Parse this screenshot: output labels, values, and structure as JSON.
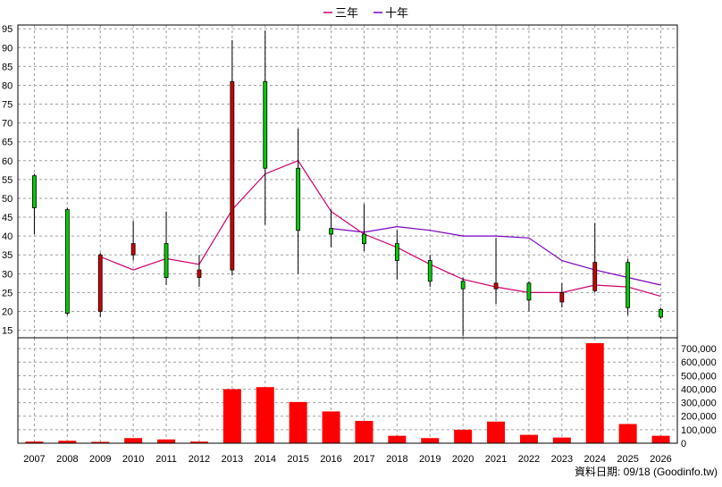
{
  "chart_data": {
    "type": "candlestick-volume",
    "legend": [
      {
        "name": "三年",
        "color": "#d0006f"
      },
      {
        "name": "十年",
        "color": "#7a00c0"
      }
    ],
    "years": [
      "2007",
      "2008",
      "2009",
      "2010",
      "2011",
      "2012",
      "2013",
      "2014",
      "2015",
      "2016",
      "2017",
      "2018",
      "2019",
      "2020",
      "2021",
      "2022",
      "2023",
      "2024",
      "2025",
      "2026"
    ],
    "price": {
      "ylim": [
        13,
        96
      ],
      "ticks": [
        15,
        20,
        25,
        30,
        35,
        40,
        45,
        50,
        55,
        60,
        65,
        70,
        75,
        80,
        85,
        90,
        95
      ],
      "candles": [
        {
          "o": 47.5,
          "c": 56.0,
          "h": 56.5,
          "l": 40.5
        },
        {
          "o": 19.5,
          "c": 47.0,
          "h": 47.5,
          "l": 19.0
        },
        {
          "o": 35.0,
          "c": 20.0,
          "h": 35.5,
          "l": 18.5
        },
        {
          "o": 38.0,
          "c": 35.0,
          "h": 44.0,
          "l": 33.5
        },
        {
          "o": 29.0,
          "c": 38.0,
          "h": 46.5,
          "l": 27.0
        },
        {
          "o": 31.0,
          "c": 29.0,
          "h": 35.0,
          "l": 26.5
        },
        {
          "o": 81.0,
          "c": 31.0,
          "h": 92.0,
          "l": 29.5
        },
        {
          "o": 58.0,
          "c": 81.0,
          "h": 94.5,
          "l": 43.0
        },
        {
          "o": 41.5,
          "c": 58.0,
          "h": 68.5,
          "l": 30.0
        },
        {
          "o": 40.5,
          "c": 42.0,
          "h": 47.0,
          "l": 37.0
        },
        {
          "o": 38.0,
          "c": 40.5,
          "h": 48.5,
          "l": 36.0
        },
        {
          "o": 33.5,
          "c": 38.0,
          "h": 41.5,
          "l": 28.5
        },
        {
          "o": 28.0,
          "c": 33.5,
          "h": 35.0,
          "l": 26.5
        },
        {
          "o": 26.0,
          "c": 28.0,
          "h": 29.0,
          "l": 13.5
        },
        {
          "o": 27.5,
          "c": 26.0,
          "h": 39.5,
          "l": 22.0
        },
        {
          "o": 23.0,
          "c": 27.5,
          "h": 28.0,
          "l": 20.0
        },
        {
          "o": 25.0,
          "c": 22.5,
          "h": 27.5,
          "l": 21.0
        },
        {
          "o": 33.0,
          "c": 25.5,
          "h": 43.5,
          "l": 25.0
        },
        {
          "o": 21.0,
          "c": 33.0,
          "h": 34.0,
          "l": 19.0
        },
        {
          "o": 18.5,
          "c": 20.5,
          "h": 21.0,
          "l": 18.0
        }
      ],
      "ma3": [
        null,
        null,
        34.5,
        31.0,
        34.0,
        32.5,
        47.0,
        56.5,
        60.0,
        46.5,
        40.5,
        37.0,
        32.5,
        28.5,
        26.5,
        25.0,
        25.0,
        27.0,
        26.5,
        24.0
      ],
      "ma10": [
        null,
        null,
        null,
        null,
        null,
        null,
        null,
        null,
        null,
        42.0,
        41.0,
        42.5,
        41.5,
        40.0,
        40.0,
        39.5,
        33.5,
        31.0,
        29.0,
        27.0
      ]
    },
    "volume": {
      "ylim": [
        0,
        780000
      ],
      "ticks": [
        0,
        100000,
        200000,
        300000,
        400000,
        500000,
        600000,
        700000
      ],
      "tick_labels": [
        "0",
        "100,000",
        "200,000",
        "300,000",
        "400,000",
        "500,000",
        "600,000",
        "700,000"
      ],
      "values": [
        12000,
        18000,
        10000,
        38000,
        28000,
        12000,
        400000,
        415000,
        305000,
        235000,
        165000,
        55000,
        38000,
        100000,
        160000,
        62000,
        42000,
        740000,
        142000,
        55000
      ]
    },
    "footer": "資料日期: 09/18 (Goodinfo.tw)"
  },
  "colors": {
    "up": "#00cc00",
    "down": "#cc0000",
    "volume": "#ff0000",
    "grid": "#a0a0a0",
    "axis": "#000000"
  }
}
